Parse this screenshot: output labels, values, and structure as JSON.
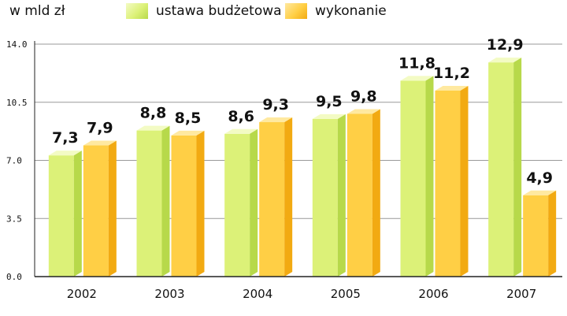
{
  "legend": {
    "unit": "w mld zł",
    "budget_label": "ustawa budżetowa",
    "execution_label": "wykonanie"
  },
  "colors": {
    "budget_front": "#dcf178",
    "budget_side": "#b7d94a",
    "budget_top": "#f3fbc4",
    "execution_front": "#ffcf45",
    "execution_side": "#f2aa12",
    "execution_top": "#ffe9a0",
    "axis": "#222222",
    "grid": "#999999"
  },
  "chart_data": {
    "type": "bar",
    "categories": [
      "2002",
      "2003",
      "2004",
      "2005",
      "2006",
      "2007"
    ],
    "series": [
      {
        "name": "ustawa budżetowa",
        "values": [
          7.3,
          8.8,
          8.6,
          9.5,
          11.8,
          12.9
        ],
        "labels": [
          "7,3",
          "8,8",
          "8,6",
          "9,5",
          "11,8",
          "12,9"
        ]
      },
      {
        "name": "wykonanie",
        "values": [
          7.9,
          8.5,
          9.3,
          9.8,
          11.2,
          4.9
        ],
        "labels": [
          "7,9",
          "8,5",
          "9,3",
          "9,8",
          "11,2",
          "4,9"
        ]
      }
    ],
    "ylim": [
      0,
      14
    ],
    "yticks": [
      0,
      3.5,
      7,
      10.5,
      14
    ],
    "ytick_labels": [
      "0.0",
      "3.5",
      "7.0",
      "10.5",
      "14.0"
    ],
    "grid": true,
    "legend_position": "top-left"
  }
}
